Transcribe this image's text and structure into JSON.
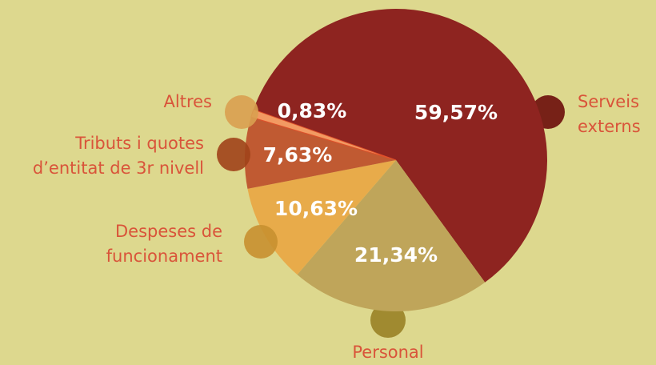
{
  "chart_data": {
    "type": "pie",
    "categories": [
      "Serveis externs",
      "Personal",
      "Despeses de funcionament",
      "Tributs i quotes d’entitat de 3r nivell",
      "Altres"
    ],
    "values": [
      59.57,
      21.34,
      10.63,
      7.63,
      0.83
    ],
    "value_labels": [
      "59,57%",
      "21,34%",
      "10,63%",
      "7,63%",
      "0,83%"
    ],
    "colors": [
      "#8e2420",
      "#bfa55a",
      "#e8ab4a",
      "#c05a32",
      "#f29a62"
    ]
  }
}
